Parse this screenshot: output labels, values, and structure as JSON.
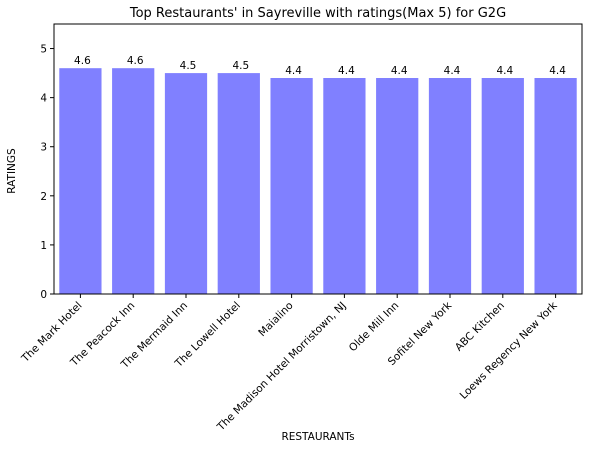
{
  "chart_data": {
    "type": "bar",
    "title": "Top Restaurants' in Sayreville with ratings(Max 5) for G2G",
    "xlabel": "RESTAURANTs",
    "ylabel": "RATINGS",
    "categories": [
      "The Mark Hotel",
      "The Peacock Inn",
      "The Mermaid Inn",
      "The Lowell Hotel",
      "Maialino",
      "The Madison Hotel Morristown, NJ",
      "Olde Mill Inn",
      "Sofitel New York",
      "ABC Kitchen",
      "Loews Regency New York"
    ],
    "values": [
      4.6,
      4.6,
      4.5,
      4.5,
      4.4,
      4.4,
      4.4,
      4.4,
      4.4,
      4.4
    ],
    "data_labels": [
      "4.6",
      "4.6",
      "4.5",
      "4.5",
      "4.4",
      "4.4",
      "4.4",
      "4.4",
      "4.4",
      "4.4"
    ],
    "yticks": [
      0,
      1,
      2,
      3,
      4,
      5
    ],
    "ylim": [
      0,
      5.5
    ],
    "grid": false,
    "legend": "none",
    "bar_color": "#8080ff"
  }
}
